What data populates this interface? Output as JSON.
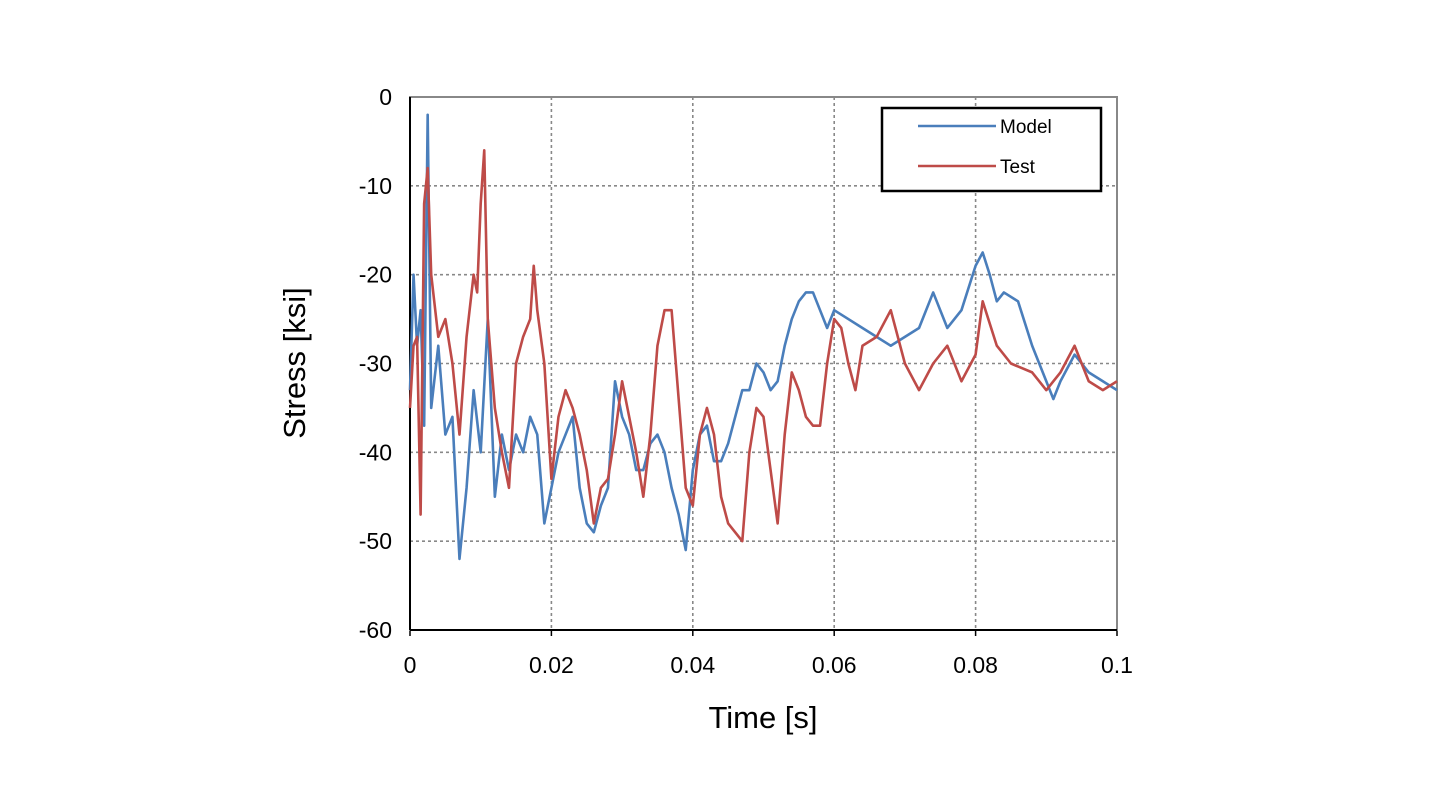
{
  "chart_data": {
    "type": "line",
    "xlabel": "Time [s]",
    "ylabel": "Stress [ksi]",
    "xlim": [
      0,
      0.1
    ],
    "ylim": [
      -60,
      0
    ],
    "xticks": [
      0,
      0.02,
      0.04,
      0.06,
      0.08,
      0.1
    ],
    "yticks": [
      0,
      -10,
      -20,
      -30,
      -40,
      -50,
      -60
    ],
    "grid": true,
    "legend": "upper right",
    "series": [
      {
        "name": "Model",
        "color": "#4a7ebb",
        "x": [
          0,
          0.0005,
          0.001,
          0.0015,
          0.002,
          0.0025,
          0.003,
          0.004,
          0.005,
          0.006,
          0.007,
          0.008,
          0.009,
          0.01,
          0.011,
          0.012,
          0.013,
          0.014,
          0.015,
          0.016,
          0.017,
          0.018,
          0.019,
          0.02,
          0.021,
          0.022,
          0.023,
          0.024,
          0.025,
          0.026,
          0.027,
          0.028,
          0.029,
          0.03,
          0.031,
          0.032,
          0.033,
          0.034,
          0.035,
          0.036,
          0.037,
          0.038,
          0.039,
          0.04,
          0.041,
          0.042,
          0.043,
          0.044,
          0.045,
          0.046,
          0.047,
          0.048,
          0.049,
          0.05,
          0.051,
          0.052,
          0.053,
          0.054,
          0.055,
          0.056,
          0.057,
          0.058,
          0.059,
          0.06,
          0.062,
          0.064,
          0.066,
          0.068,
          0.07,
          0.072,
          0.074,
          0.076,
          0.078,
          0.08,
          0.081,
          0.082,
          0.083,
          0.084,
          0.086,
          0.088,
          0.09,
          0.091,
          0.092,
          0.094,
          0.096,
          0.098,
          0.1
        ],
        "values": [
          -33,
          -20,
          -28,
          -24,
          -37,
          -2,
          -35,
          -28,
          -38,
          -36,
          -52,
          -44,
          -33,
          -40,
          -25,
          -45,
          -38,
          -42,
          -38,
          -40,
          -36,
          -38,
          -48,
          -44,
          -40,
          -38,
          -36,
          -44,
          -48,
          -49,
          -46,
          -44,
          -32,
          -36,
          -38,
          -42,
          -42,
          -39,
          -38,
          -40,
          -44,
          -47,
          -51,
          -42,
          -38,
          -37,
          -41,
          -41,
          -39,
          -36,
          -33,
          -33,
          -30,
          -31,
          -33,
          -32,
          -28,
          -25,
          -23,
          -22,
          -22,
          -24,
          -26,
          -24,
          -25,
          -26,
          -27,
          -28,
          -27,
          -26,
          -22,
          -26,
          -24,
          -19,
          -17.5,
          -20,
          -23,
          -22,
          -23,
          -28,
          -32,
          -34,
          -32,
          -29,
          -31,
          -32,
          -33
        ]
      },
      {
        "name": "Test",
        "color": "#be4b48",
        "x": [
          0,
          0.0005,
          0.001,
          0.0015,
          0.002,
          0.0025,
          0.003,
          0.004,
          0.005,
          0.006,
          0.007,
          0.008,
          0.009,
          0.0095,
          0.01,
          0.0105,
          0.011,
          0.012,
          0.013,
          0.014,
          0.015,
          0.016,
          0.017,
          0.0175,
          0.018,
          0.019,
          0.02,
          0.021,
          0.022,
          0.023,
          0.024,
          0.025,
          0.026,
          0.027,
          0.028,
          0.029,
          0.03,
          0.031,
          0.032,
          0.033,
          0.034,
          0.035,
          0.036,
          0.037,
          0.038,
          0.039,
          0.04,
          0.041,
          0.042,
          0.043,
          0.044,
          0.045,
          0.046,
          0.047,
          0.048,
          0.049,
          0.05,
          0.051,
          0.052,
          0.053,
          0.054,
          0.055,
          0.056,
          0.057,
          0.058,
          0.059,
          0.06,
          0.061,
          0.062,
          0.063,
          0.064,
          0.066,
          0.068,
          0.07,
          0.072,
          0.074,
          0.076,
          0.078,
          0.08,
          0.081,
          0.083,
          0.085,
          0.088,
          0.09,
          0.092,
          0.094,
          0.096,
          0.098,
          0.1
        ],
        "values": [
          -35,
          -28,
          -27,
          -47,
          -12,
          -8,
          -20,
          -27,
          -25,
          -30,
          -38,
          -27,
          -20,
          -22,
          -12,
          -6,
          -25,
          -35,
          -40,
          -44,
          -30,
          -27,
          -25,
          -19,
          -24,
          -30,
          -43,
          -36,
          -33,
          -35,
          -38,
          -42,
          -48,
          -44,
          -43,
          -38,
          -32,
          -36,
          -40,
          -45,
          -38,
          -28,
          -24,
          -24,
          -34,
          -44,
          -46,
          -38,
          -35,
          -38,
          -45,
          -48,
          -49,
          -50,
          -40,
          -35,
          -36,
          -42,
          -48,
          -38,
          -31,
          -33,
          -36,
          -37,
          -37,
          -30,
          -25,
          -26,
          -30,
          -33,
          -28,
          -27,
          -24,
          -30,
          -33,
          -30,
          -28,
          -32,
          -29,
          -23,
          -28,
          -30,
          -31,
          -33,
          -31,
          -28,
          -32,
          -33,
          -32
        ]
      }
    ]
  }
}
